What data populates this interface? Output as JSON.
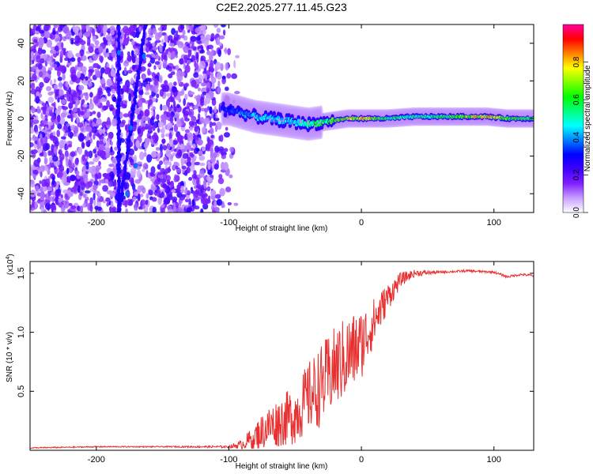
{
  "title": "C2E2.2025.277.11.45.G23",
  "chart_data": [
    {
      "type": "heatmap",
      "xlabel": "Height of straight line (km)",
      "ylabel": "Frequency (Hz)",
      "xlim": [
        -250,
        130
      ],
      "ylim": [
        -50,
        50
      ],
      "x_ticks": [
        -200,
        -100,
        0,
        100
      ],
      "y_ticks": [
        -40,
        -20,
        0,
        20,
        40
      ],
      "grid": false,
      "colorbar": {
        "label": "Normalized spectral amplitude",
        "range": [
          0.0,
          1.0
        ],
        "ticks": [
          0.0,
          0.2,
          0.4,
          0.6,
          0.8
        ],
        "tick_labels": [
          "0.0",
          "0.2",
          "0.4",
          "0.6",
          "0.8"
        ],
        "colormap": [
          "#ffffff",
          "#c8a0ff",
          "#8020ff",
          "#4000ff",
          "#0000ff",
          "#0080ff",
          "#00ffff",
          "#00ff80",
          "#00ff00",
          "#80ff00",
          "#ffff00",
          "#ff8000",
          "#ff0000",
          "#ff00a0"
        ]
      },
      "features": {
        "noise_region_x": [
          -250,
          -100
        ],
        "signal_band": [
          {
            "x": -100,
            "y": 5,
            "amp": 0.35
          },
          {
            "x": -90,
            "y": 3,
            "amp": 0.4
          },
          {
            "x": -80,
            "y": 1,
            "amp": 0.45
          },
          {
            "x": -70,
            "y": 0,
            "amp": 0.45
          },
          {
            "x": -60,
            "y": -1,
            "amp": 0.45
          },
          {
            "x": -50,
            "y": -2,
            "amp": 0.5
          },
          {
            "x": -40,
            "y": -3,
            "amp": 0.55
          },
          {
            "x": -30,
            "y": -2,
            "amp": 0.6
          },
          {
            "x": -20,
            "y": -1,
            "amp": 0.65
          },
          {
            "x": -10,
            "y": 0,
            "amp": 0.75
          },
          {
            "x": 0,
            "y": 0,
            "amp": 0.8
          },
          {
            "x": 20,
            "y": 0,
            "amp": 0.6
          },
          {
            "x": 40,
            "y": 1,
            "amp": 0.55
          },
          {
            "x": 60,
            "y": 1,
            "amp": 0.6
          },
          {
            "x": 80,
            "y": 1,
            "amp": 0.75
          },
          {
            "x": 95,
            "y": 1,
            "amp": 0.85
          },
          {
            "x": 110,
            "y": 0,
            "amp": 0.65
          },
          {
            "x": 130,
            "y": 0,
            "amp": 0.6
          }
        ],
        "diagonal_streaks": [
          {
            "x0": -183,
            "y0": -50,
            "x1": -183,
            "y1": 50
          },
          {
            "x0": -183,
            "y0": -50,
            "x1": -163,
            "y1": 50
          }
        ]
      }
    },
    {
      "type": "line",
      "xlabel": "Height of straight line (km)",
      "ylabel": "SNR (10 * v/v)",
      "y_multiplier_label": "(x10",
      "y_multiplier_exp": "4",
      "y_multiplier_close": ")",
      "xlim": [
        -250,
        130
      ],
      "ylim": [
        0.0,
        1.6
      ],
      "x_ticks": [
        -200,
        -100,
        0,
        100
      ],
      "y_ticks": [
        0.5,
        1.0,
        1.5
      ],
      "y_tick_labels": [
        "0.5",
        "1.0",
        "1.5"
      ],
      "grid": false,
      "series": [
        {
          "color": "#e83030",
          "x": [
            -250,
            -200,
            -150,
            -100,
            -90,
            -80,
            -70,
            -60,
            -50,
            -40,
            -30,
            -20,
            -10,
            0,
            10,
            20,
            30,
            40,
            60,
            80,
            100,
            110,
            120,
            130
          ],
          "y": [
            0.02,
            0.03,
            0.03,
            0.03,
            0.05,
            0.12,
            0.2,
            0.25,
            0.3,
            0.45,
            0.55,
            0.7,
            0.8,
            0.9,
            1.1,
            1.3,
            1.45,
            1.5,
            1.51,
            1.52,
            1.51,
            1.47,
            1.49,
            1.48
          ],
          "noise_amplitude": [
            0.005,
            0.005,
            0.005,
            0.01,
            0.04,
            0.12,
            0.18,
            0.22,
            0.25,
            0.3,
            0.35,
            0.35,
            0.35,
            0.3,
            0.2,
            0.12,
            0.06,
            0.03,
            0.01,
            0.01,
            0.01,
            0.01,
            0.01,
            0.01
          ]
        }
      ]
    }
  ]
}
